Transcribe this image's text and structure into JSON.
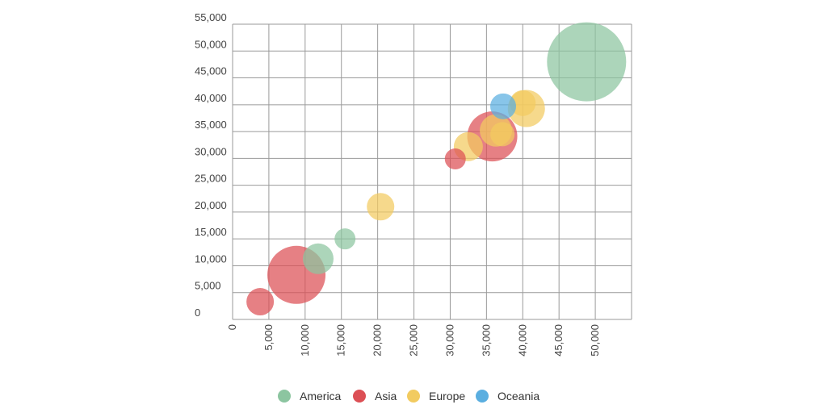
{
  "chart_data": {
    "type": "scatter",
    "title": "",
    "xlabel": "",
    "ylabel": "",
    "xlim": [
      0,
      55000
    ],
    "ylim": [
      0,
      55000
    ],
    "x_ticks": [
      "0",
      "5,000",
      "10,000",
      "15,000",
      "20,000",
      "25,000",
      "30,000",
      "35,000",
      "40,000",
      "45,000",
      "50,000"
    ],
    "y_ticks": [
      "0",
      "5,000",
      "10,000",
      "15,000",
      "20,000",
      "25,000",
      "30,000",
      "35,000",
      "40,000",
      "45,000",
      "50,000",
      "55,000"
    ],
    "grid": true,
    "legend_position": "bottom-center",
    "series": [
      {
        "name": "America",
        "color": "#8cc5a0",
        "points": [
          {
            "x": 48800,
            "y": 48000,
            "size": 49
          },
          {
            "x": 11800,
            "y": 11300,
            "size": 19
          },
          {
            "x": 15500,
            "y": 15000,
            "size": 13
          }
        ]
      },
      {
        "name": "Asia",
        "color": "#dc4f55",
        "points": [
          {
            "x": 3800,
            "y": 3300,
            "size": 17
          },
          {
            "x": 8800,
            "y": 8300,
            "size": 36
          },
          {
            "x": 30700,
            "y": 29900,
            "size": 13
          },
          {
            "x": 35800,
            "y": 34100,
            "size": 31
          }
        ]
      },
      {
        "name": "Europe",
        "color": "#f2cb60",
        "points": [
          {
            "x": 20400,
            "y": 21000,
            "size": 17
          },
          {
            "x": 32500,
            "y": 32200,
            "size": 18
          },
          {
            "x": 36300,
            "y": 35200,
            "size": 20
          },
          {
            "x": 37200,
            "y": 34500,
            "size": 15
          },
          {
            "x": 40500,
            "y": 39300,
            "size": 23
          },
          {
            "x": 40000,
            "y": 40300,
            "size": 16
          }
        ]
      },
      {
        "name": "Oceania",
        "color": "#5aaee0",
        "points": [
          {
            "x": 37300,
            "y": 39700,
            "size": 16
          }
        ]
      }
    ]
  }
}
